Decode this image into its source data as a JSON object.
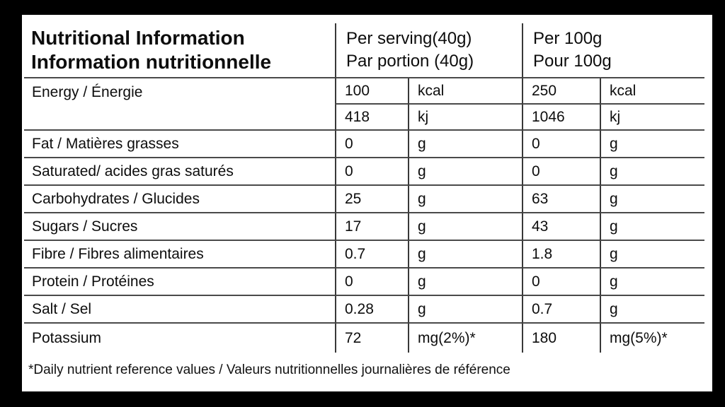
{
  "header": {
    "title_en": "Nutritional Information",
    "title_fr": "Information nutritionnelle",
    "serving_en": "Per serving(40g)",
    "serving_fr": "Par portion (40g)",
    "per100_en": "Per 100g",
    "per100_fr": "Pour 100g"
  },
  "energy": {
    "label": "Energy / Énergie",
    "rows": [
      {
        "serving_value": "100",
        "serving_unit": "kcal",
        "per100_value": "250",
        "per100_unit": "kcal"
      },
      {
        "serving_value": "418",
        "serving_unit": "kj",
        "per100_value": "1046",
        "per100_unit": "kj"
      }
    ]
  },
  "nutrients": [
    {
      "label": "Fat / Matières grasses",
      "serving_value": "0",
      "serving_unit": "g",
      "per100_value": "0",
      "per100_unit": "g"
    },
    {
      "label": "Saturated/ acides gras saturés",
      "serving_value": "0",
      "serving_unit": "g",
      "per100_value": "0",
      "per100_unit": "g"
    },
    {
      "label": "Carbohydrates / Glucides",
      "serving_value": "25",
      "serving_unit": "g",
      "per100_value": "63",
      "per100_unit": "g"
    },
    {
      "label": "Sugars / Sucres",
      "serving_value": "17",
      "serving_unit": "g",
      "per100_value": "43",
      "per100_unit": "g"
    },
    {
      "label": "Fibre / Fibres alimentaires",
      "serving_value": "0.7",
      "serving_unit": "g",
      "per100_value": "1.8",
      "per100_unit": "g"
    },
    {
      "label": "Protein / Protéines",
      "serving_value": "0",
      "serving_unit": "g",
      "per100_value": "0",
      "per100_unit": "g"
    },
    {
      "label": "Salt / Sel",
      "serving_value": "0.28",
      "serving_unit": "g",
      "per100_value": "0.7",
      "per100_unit": "g"
    },
    {
      "label": "Potassium",
      "serving_value": "72",
      "serving_unit": "mg(2%)*",
      "per100_value": "180",
      "per100_unit": "mg(5%)*"
    }
  ],
  "footnote": "*Daily nutrient reference values / Valeurs nutritionnelles journalières de référence",
  "colors": {
    "background": "#000000",
    "panel": "#ffffff",
    "text": "#0d0d0d",
    "grid_line": "#4a4a4a"
  }
}
